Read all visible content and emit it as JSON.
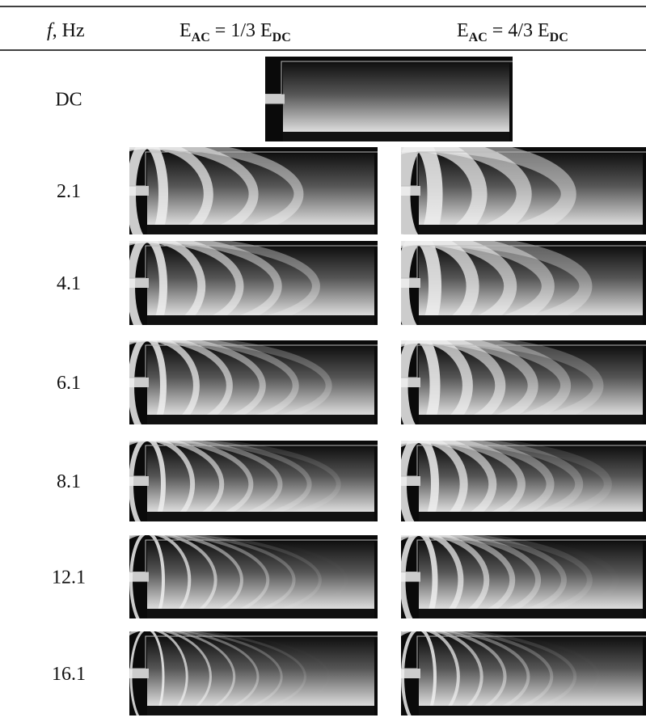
{
  "header": {
    "freq_symbol": "f",
    "freq_unit": ", Hz",
    "col1": [
      "E",
      "AC",
      " = 1/3 E",
      "DC"
    ],
    "col2": [
      "E",
      "AC",
      " = 4/3 E",
      "DC"
    ]
  },
  "rows": [
    {
      "label": "DC"
    },
    {
      "label": "2.1"
    },
    {
      "label": "4.1"
    },
    {
      "label": "6.1"
    },
    {
      "label": "8.1"
    },
    {
      "label": "12.1"
    },
    {
      "label": "16.1"
    }
  ]
}
